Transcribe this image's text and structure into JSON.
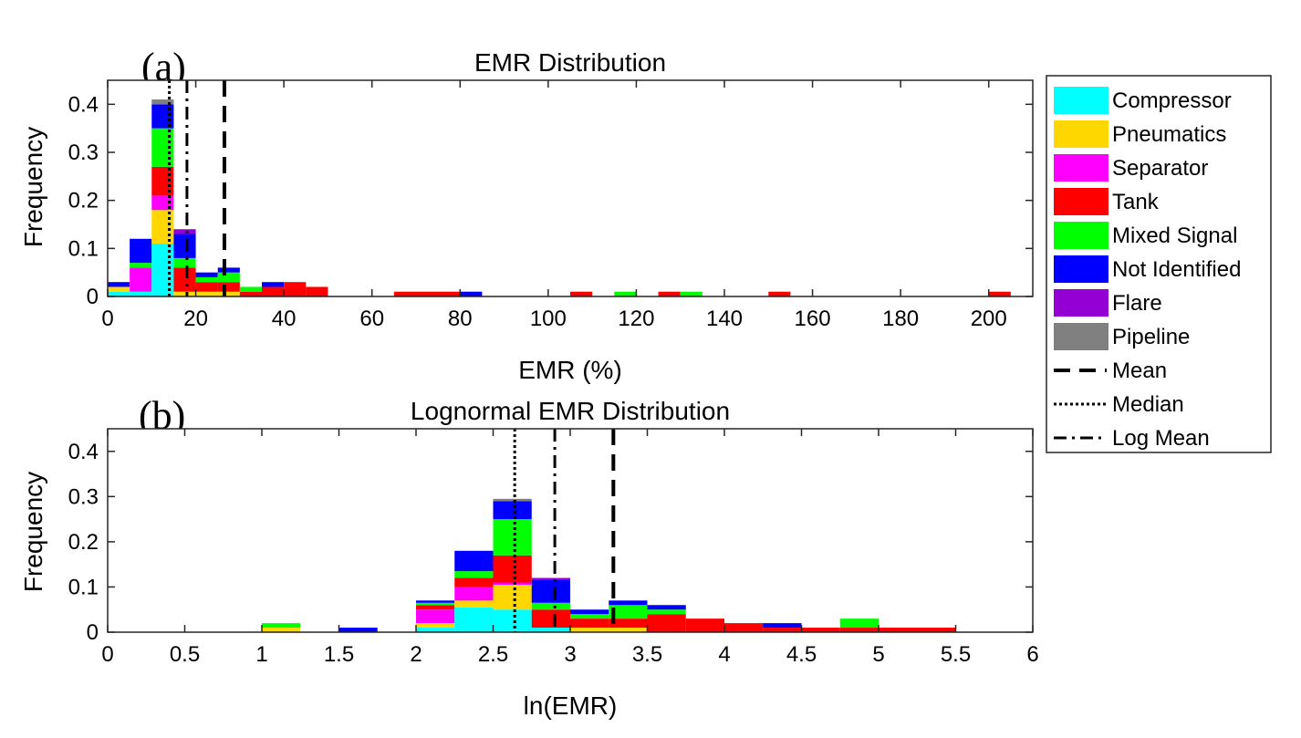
{
  "chart_data": [
    {
      "panel": "(a)",
      "type": "bar",
      "subtype": "stacked-histogram",
      "title": "EMR Distribution",
      "xlabel": "EMR (%)",
      "ylabel": "Frequency",
      "xlim": [
        0,
        210
      ],
      "ylim": [
        0,
        0.45
      ],
      "xticks": [
        0,
        20,
        40,
        60,
        80,
        100,
        120,
        140,
        160,
        180,
        200
      ],
      "yticks": [
        0,
        0.1,
        0.2,
        0.3,
        0.4
      ],
      "bin_width": 5,
      "bins": [
        {
          "x0": 0,
          "x1": 5,
          "stack": [
            0.01,
            0.01,
            0,
            0,
            0,
            0.01,
            0,
            0
          ]
        },
        {
          "x0": 5,
          "x1": 10,
          "stack": [
            0.01,
            0,
            0.05,
            0,
            0.01,
            0.05,
            0,
            0
          ]
        },
        {
          "x0": 10,
          "x1": 15,
          "stack": [
            0.11,
            0.07,
            0.03,
            0.06,
            0.08,
            0.05,
            0,
            0.01
          ]
        },
        {
          "x0": 15,
          "x1": 20,
          "stack": [
            0,
            0.01,
            0,
            0.05,
            0.02,
            0.05,
            0.01,
            0
          ]
        },
        {
          "x0": 20,
          "x1": 25,
          "stack": [
            0,
            0.01,
            0,
            0.02,
            0.01,
            0.01,
            0,
            0
          ]
        },
        {
          "x0": 25,
          "x1": 30,
          "stack": [
            0,
            0.01,
            0,
            0.02,
            0.02,
            0.01,
            0,
            0
          ]
        },
        {
          "x0": 30,
          "x1": 35,
          "stack": [
            0,
            0,
            0,
            0.01,
            0.01,
            0,
            0,
            0
          ]
        },
        {
          "x0": 35,
          "x1": 40,
          "stack": [
            0,
            0,
            0,
            0.02,
            0,
            0.01,
            0,
            0
          ]
        },
        {
          "x0": 40,
          "x1": 45,
          "stack": [
            0,
            0,
            0,
            0.03,
            0,
            0,
            0,
            0
          ]
        },
        {
          "x0": 45,
          "x1": 50,
          "stack": [
            0,
            0,
            0,
            0.02,
            0,
            0,
            0,
            0
          ]
        },
        {
          "x0": 65,
          "x1": 80,
          "stack": [
            0,
            0,
            0,
            0.01,
            0,
            0,
            0,
            0
          ]
        },
        {
          "x0": 80,
          "x1": 85,
          "stack": [
            0,
            0,
            0,
            0,
            0,
            0.01,
            0,
            0
          ]
        },
        {
          "x0": 105,
          "x1": 110,
          "stack": [
            0,
            0,
            0,
            0.01,
            0,
            0,
            0,
            0
          ]
        },
        {
          "x0": 115,
          "x1": 120,
          "stack": [
            0,
            0,
            0,
            0,
            0.01,
            0,
            0,
            0
          ]
        },
        {
          "x0": 125,
          "x1": 130,
          "stack": [
            0,
            0,
            0,
            0.01,
            0,
            0,
            0,
            0
          ]
        },
        {
          "x0": 130,
          "x1": 135,
          "stack": [
            0,
            0,
            0,
            0,
            0.01,
            0,
            0,
            0
          ]
        },
        {
          "x0": 150,
          "x1": 155,
          "stack": [
            0,
            0,
            0,
            0.01,
            0,
            0,
            0,
            0
          ]
        },
        {
          "x0": 200,
          "x1": 205,
          "stack": [
            0,
            0,
            0,
            0.01,
            0,
            0,
            0,
            0
          ]
        }
      ],
      "vlines": [
        {
          "name": "Median",
          "x": 14
        },
        {
          "name": "Log Mean",
          "x": 18
        },
        {
          "name": "Mean",
          "x": 26.5
        }
      ]
    },
    {
      "panel": "(b)",
      "type": "bar",
      "subtype": "stacked-histogram",
      "title": "Lognormal EMR Distribution",
      "xlabel": "ln(EMR)",
      "ylabel": "Frequency",
      "xlim": [
        0,
        6
      ],
      "ylim": [
        0,
        0.45
      ],
      "xticks": [
        0,
        0.5,
        1,
        1.5,
        2,
        2.5,
        3,
        3.5,
        4,
        4.5,
        5,
        5.5,
        6
      ],
      "yticks": [
        0,
        0.1,
        0.2,
        0.3,
        0.4
      ],
      "bin_width": 0.25,
      "bins": [
        {
          "x0": 1.0,
          "x1": 1.25,
          "stack": [
            0,
            0.01,
            0,
            0,
            0.01,
            0,
            0,
            0
          ]
        },
        {
          "x0": 1.5,
          "x1": 1.75,
          "stack": [
            0,
            0,
            0,
            0,
            0,
            0.01,
            0,
            0
          ]
        },
        {
          "x0": 2.0,
          "x1": 2.25,
          "stack": [
            0.01,
            0.01,
            0.03,
            0.01,
            0.005,
            0.005,
            0,
            0
          ]
        },
        {
          "x0": 2.25,
          "x1": 2.5,
          "stack": [
            0.055,
            0.015,
            0.03,
            0.02,
            0.015,
            0.045,
            0,
            0
          ]
        },
        {
          "x0": 2.5,
          "x1": 2.75,
          "stack": [
            0.05,
            0.055,
            0.005,
            0.06,
            0.08,
            0.04,
            0,
            0.005
          ]
        },
        {
          "x0": 2.75,
          "x1": 3.0,
          "stack": [
            0.01,
            0,
            0,
            0.04,
            0.015,
            0.05,
            0.005,
            0
          ]
        },
        {
          "x0": 3.0,
          "x1": 3.25,
          "stack": [
            0,
            0.01,
            0,
            0.02,
            0.01,
            0.01,
            0,
            0
          ]
        },
        {
          "x0": 3.25,
          "x1": 3.5,
          "stack": [
            0,
            0.01,
            0,
            0.02,
            0.03,
            0.01,
            0,
            0
          ]
        },
        {
          "x0": 3.5,
          "x1": 3.75,
          "stack": [
            0,
            0,
            0,
            0.04,
            0.01,
            0.01,
            0,
            0
          ]
        },
        {
          "x0": 3.75,
          "x1": 4.0,
          "stack": [
            0,
            0,
            0,
            0.03,
            0,
            0,
            0,
            0
          ]
        },
        {
          "x0": 4.0,
          "x1": 4.25,
          "stack": [
            0,
            0,
            0,
            0.02,
            0,
            0,
            0,
            0
          ]
        },
        {
          "x0": 4.25,
          "x1": 4.5,
          "stack": [
            0,
            0,
            0,
            0.01,
            0,
            0.01,
            0,
            0
          ]
        },
        {
          "x0": 4.5,
          "x1": 4.75,
          "stack": [
            0,
            0,
            0,
            0.01,
            0,
            0,
            0,
            0
          ]
        },
        {
          "x0": 4.75,
          "x1": 5.0,
          "stack": [
            0,
            0,
            0,
            0.01,
            0.02,
            0,
            0,
            0
          ]
        },
        {
          "x0": 5.0,
          "x1": 5.5,
          "stack": [
            0,
            0,
            0,
            0.01,
            0,
            0,
            0,
            0
          ]
        }
      ],
      "vlines": [
        {
          "name": "Median",
          "x": 2.64
        },
        {
          "name": "Log Mean",
          "x": 2.9
        },
        {
          "name": "Mean",
          "x": 3.28
        }
      ]
    }
  ],
  "categories": [
    {
      "name": "Compressor",
      "color": "#00FFFF"
    },
    {
      "name": "Pneumatics",
      "color": "#FFD700"
    },
    {
      "name": "Separator",
      "color": "#FF00FF"
    },
    {
      "name": "Tank",
      "color": "#FF0000"
    },
    {
      "name": "Mixed Signal",
      "color": "#00FF00"
    },
    {
      "name": "Not Identified",
      "color": "#0000FF"
    },
    {
      "name": "Flare",
      "color": "#9400D3"
    },
    {
      "name": "Pipeline",
      "color": "#808080"
    }
  ],
  "line_styles": [
    {
      "name": "Mean",
      "style": "dashed"
    },
    {
      "name": "Median",
      "style": "dotted"
    },
    {
      "name": "Log Mean",
      "style": "dashdot"
    }
  ],
  "legend": {
    "placement": "right",
    "entries": [
      "Compressor",
      "Pneumatics",
      "Separator",
      "Tank",
      "Mixed Signal",
      "Not Identified",
      "Flare",
      "Pipeline",
      "Mean",
      "Median",
      "Log Mean"
    ]
  }
}
